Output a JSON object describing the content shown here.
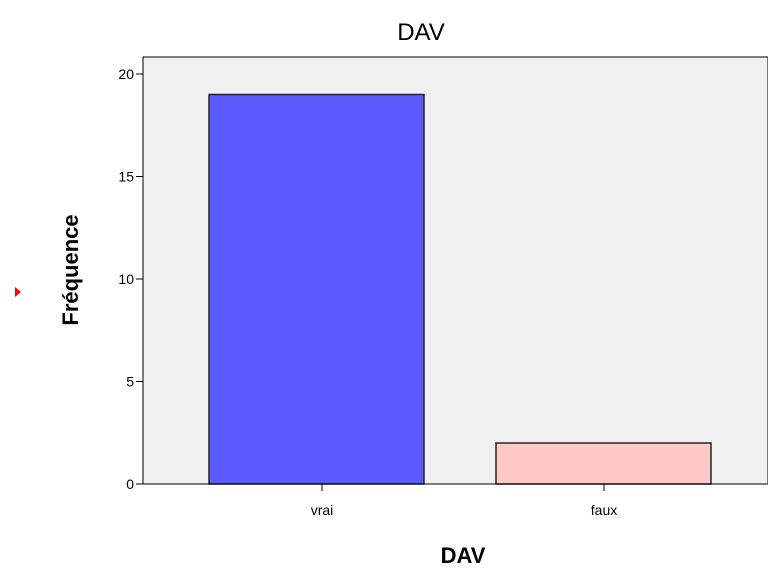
{
  "chart_data": {
    "type": "bar",
    "title": "DAV",
    "xlabel": "DAV",
    "ylabel": "Fréquence",
    "categories": [
      "vrai",
      "faux"
    ],
    "values": [
      19,
      2
    ],
    "ylim": [
      0,
      21
    ],
    "yticks": [
      0,
      5,
      10,
      15,
      20
    ],
    "bar_colors": [
      "#5a5aff",
      "#ffc8c8"
    ],
    "plot_background": "#f0f0f0",
    "bar_outline": "#222222",
    "grid": false,
    "legend": "none"
  }
}
